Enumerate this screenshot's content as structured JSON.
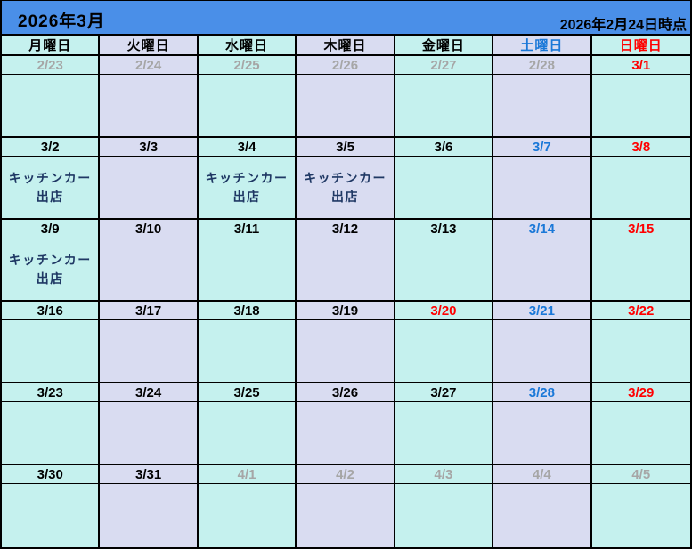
{
  "title": "2026年3月",
  "timestamp": "2026年2月24日時点",
  "colors": {
    "header_bar": "#4a8fe8",
    "cell_cyan": "#c5f1ee",
    "cell_lavender": "#d9dcf1",
    "saturday_blue": "#1a78d8",
    "sunday_red": "#ff0000",
    "muted_gray": "#a6a6a6",
    "event_navy": "#1f3864"
  },
  "weekday_headers": [
    {
      "label": "月曜日",
      "color": "black"
    },
    {
      "label": "火曜日",
      "color": "black"
    },
    {
      "label": "水曜日",
      "color": "black"
    },
    {
      "label": "木曜日",
      "color": "black"
    },
    {
      "label": "金曜日",
      "color": "black"
    },
    {
      "label": "土曜日",
      "color": "blue"
    },
    {
      "label": "日曜日",
      "color": "red"
    }
  ],
  "weeks": [
    {
      "dates": [
        {
          "d": "2/23",
          "c": "gray"
        },
        {
          "d": "2/24",
          "c": "gray"
        },
        {
          "d": "2/25",
          "c": "gray"
        },
        {
          "d": "2/26",
          "c": "gray"
        },
        {
          "d": "2/27",
          "c": "gray"
        },
        {
          "d": "2/28",
          "c": "gray"
        },
        {
          "d": "3/1",
          "c": "red"
        }
      ],
      "events": [
        "",
        "",
        "",
        "",
        "",
        "",
        ""
      ]
    },
    {
      "dates": [
        {
          "d": "3/2",
          "c": "black"
        },
        {
          "d": "3/3",
          "c": "black"
        },
        {
          "d": "3/4",
          "c": "black"
        },
        {
          "d": "3/5",
          "c": "black"
        },
        {
          "d": "3/6",
          "c": "black"
        },
        {
          "d": "3/7",
          "c": "blue"
        },
        {
          "d": "3/8",
          "c": "red"
        }
      ],
      "events": [
        "キッチンカー\n出店",
        "",
        "キッチンカー\n出店",
        "キッチンカー\n出店",
        "",
        "",
        ""
      ]
    },
    {
      "dates": [
        {
          "d": "3/9",
          "c": "black"
        },
        {
          "d": "3/10",
          "c": "black"
        },
        {
          "d": "3/11",
          "c": "black"
        },
        {
          "d": "3/12",
          "c": "black"
        },
        {
          "d": "3/13",
          "c": "black"
        },
        {
          "d": "3/14",
          "c": "blue"
        },
        {
          "d": "3/15",
          "c": "red"
        }
      ],
      "events": [
        "キッチンカー\n出店",
        "",
        "",
        "",
        "",
        "",
        ""
      ]
    },
    {
      "dates": [
        {
          "d": "3/16",
          "c": "black"
        },
        {
          "d": "3/17",
          "c": "black"
        },
        {
          "d": "3/18",
          "c": "black"
        },
        {
          "d": "3/19",
          "c": "black"
        },
        {
          "d": "3/20",
          "c": "red"
        },
        {
          "d": "3/21",
          "c": "blue"
        },
        {
          "d": "3/22",
          "c": "red"
        }
      ],
      "events": [
        "",
        "",
        "",
        "",
        "",
        "",
        ""
      ]
    },
    {
      "dates": [
        {
          "d": "3/23",
          "c": "black"
        },
        {
          "d": "3/24",
          "c": "black"
        },
        {
          "d": "3/25",
          "c": "black"
        },
        {
          "d": "3/26",
          "c": "black"
        },
        {
          "d": "3/27",
          "c": "black"
        },
        {
          "d": "3/28",
          "c": "blue"
        },
        {
          "d": "3/29",
          "c": "red"
        }
      ],
      "events": [
        "",
        "",
        "",
        "",
        "",
        "",
        ""
      ]
    },
    {
      "dates": [
        {
          "d": "3/30",
          "c": "black"
        },
        {
          "d": "3/31",
          "c": "black"
        },
        {
          "d": "4/1",
          "c": "gray"
        },
        {
          "d": "4/2",
          "c": "gray"
        },
        {
          "d": "4/3",
          "c": "gray"
        },
        {
          "d": "4/4",
          "c": "gray"
        },
        {
          "d": "4/5",
          "c": "gray"
        }
      ],
      "events": [
        "",
        "",
        "",
        "",
        "",
        "",
        ""
      ]
    }
  ]
}
